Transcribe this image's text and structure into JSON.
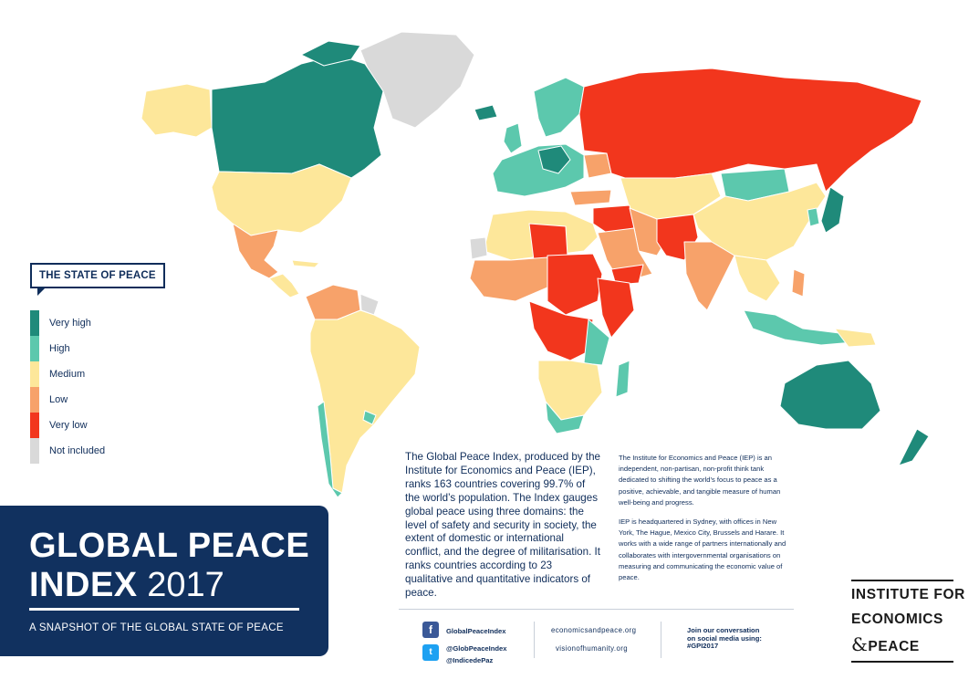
{
  "legend": {
    "title": "THE STATE OF PEACE",
    "items": [
      {
        "label": "Very high",
        "color": "#1f8a7a"
      },
      {
        "label": "High",
        "color": "#5cc8ad"
      },
      {
        "label": "Medium",
        "color": "#fde79a"
      },
      {
        "label": "Low",
        "color": "#f7a26a"
      },
      {
        "label": "Very low",
        "color": "#f2361d"
      },
      {
        "label": "Not included",
        "color": "#d9d9d9"
      }
    ]
  },
  "title_card": {
    "line1": "GLOBAL PEACE",
    "line2_bold": "INDEX",
    "line2_year": " 2017",
    "subtitle": "A SNAPSHOT OF THE GLOBAL STATE OF PEACE"
  },
  "description": {
    "main": "The Global Peace Index, produced by the Institute for Economics and Peace (IEP), ranks 163 countries covering 99.7% of the world’s population. The Index gauges global peace using three domains: the level of safety and security in society, the extent of domestic or international conflict, and the degree of militarisation. It ranks countries according to 23 qualitative and quantitative indicators of peace.",
    "side_p1": "The Institute for Economics and Peace (IEP) is an independent, non-partisan, non-profit think tank dedicated to shifting the world’s focus to peace as a positive, achievable, and tangible measure of human well-being and progress.",
    "side_p2": "IEP is headquartered in Sydney, with offices in New York, The Hague, Mexico City, Brussels and Harare. It works with a wide range of partners internationally and collaborates with intergovernmental organisations on measuring and communicating the economic value of peace."
  },
  "footer": {
    "facebook": "GlobalPeaceIndex",
    "twitter_1": "@GlobPeaceIndex",
    "twitter_2": "@IndicedePaz",
    "link_1": "economicsandpeace.org",
    "link_2": "visionofhumanity.org",
    "cta_1": "Join our conversation",
    "cta_2": "on social media using:",
    "cta_3": "#GPI2017"
  },
  "logo": {
    "line1": "INSTITUTE FOR",
    "line2": "ECONOMICS",
    "line3_amp": "&",
    "line3": "PEACE"
  },
  "map_colors": {
    "very_high": "#1f8a7a",
    "high": "#5cc8ad",
    "medium": "#fde79a",
    "low": "#f7a26a",
    "very_low": "#f2361d",
    "not_included": "#d9d9d9"
  }
}
